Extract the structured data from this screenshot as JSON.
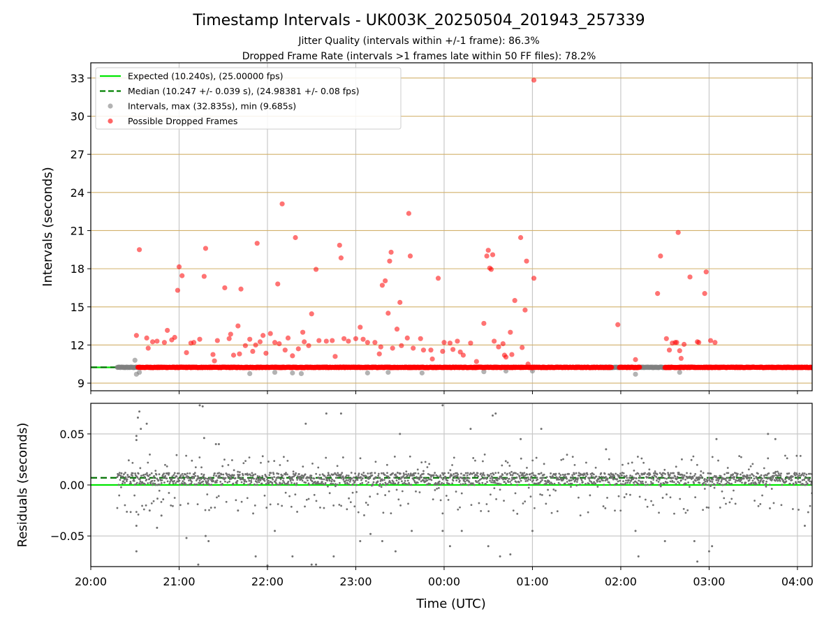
{
  "chart_data": [
    {
      "panel": "intervals",
      "type": "scatter",
      "title": "Timestamp Intervals - UK003K_20250504_201943_257339",
      "subtitles": [
        "Jitter Quality (intervals within +/-1 frame): 86.3%",
        "Dropped Frame Rate (intervals >1 frames late within 50 FF files): 78.2%"
      ],
      "xlabel": "",
      "ylabel": "Intervals (seconds)",
      "xlim": [
        "20:00",
        "04:10"
      ],
      "ylim": [
        8.4,
        34.2
      ],
      "yticks": [
        9,
        12,
        15,
        18,
        21,
        24,
        27,
        30,
        33
      ],
      "grid": true,
      "legend_position": "top-left",
      "legend": [
        {
          "label": "Expected (10.240s), (25.00000 fps)",
          "style": "solid-line",
          "color": "#00e600"
        },
        {
          "label": "Median (10.247 +/- 0.039 s), (24.98381 +/- 0.08 fps)",
          "style": "dashed-line",
          "color": "#008000"
        },
        {
          "label": "Intervals, max (32.835s), min (9.685s)",
          "style": "marker",
          "color": "#808080"
        },
        {
          "label": "Possible Dropped Frames",
          "style": "marker",
          "color": "#ff0000"
        }
      ],
      "expected": 10.24,
      "median": 10.247,
      "series": [
        {
          "name": "Possible Dropped Frames",
          "color": "#ff0000",
          "points": [
            [
              "20:31",
              12.75
            ],
            [
              "20:33",
              19.5
            ],
            [
              "20:38",
              12.55
            ],
            [
              "20:39",
              11.75
            ],
            [
              "20:42",
              12.25
            ],
            [
              "20:45",
              12.3
            ],
            [
              "20:50",
              12.2
            ],
            [
              "20:52",
              13.15
            ],
            [
              "20:55",
              12.4
            ],
            [
              "20:57",
              12.6
            ],
            [
              "20:59",
              16.3
            ],
            [
              "21:00",
              18.15
            ],
            [
              "21:02",
              17.45
            ],
            [
              "21:05",
              11.4
            ],
            [
              "21:08",
              12.15
            ],
            [
              "21:10",
              12.2
            ],
            [
              "21:14",
              12.45
            ],
            [
              "21:17",
              17.4
            ],
            [
              "21:18",
              19.6
            ],
            [
              "21:23",
              11.25
            ],
            [
              "21:24",
              10.75
            ],
            [
              "21:26",
              12.35
            ],
            [
              "21:31",
              16.5
            ],
            [
              "21:34",
              12.5
            ],
            [
              "21:35",
              12.85
            ],
            [
              "21:37",
              11.2
            ],
            [
              "21:40",
              13.5
            ],
            [
              "21:41",
              11.3
            ],
            [
              "21:42",
              16.4
            ],
            [
              "21:45",
              11.95
            ],
            [
              "21:48",
              12.45
            ],
            [
              "21:50",
              11.5
            ],
            [
              "21:52",
              12.0
            ],
            [
              "21:53",
              20.0
            ],
            [
              "21:55",
              12.25
            ],
            [
              "21:57",
              12.75
            ],
            [
              "21:59",
              11.35
            ],
            [
              "22:02",
              12.9
            ],
            [
              "22:05",
              12.2
            ],
            [
              "22:07",
              16.8
            ],
            [
              "22:08",
              12.1
            ],
            [
              "22:10",
              23.1
            ],
            [
              "22:12",
              11.6
            ],
            [
              "22:14",
              12.55
            ],
            [
              "22:17",
              11.15
            ],
            [
              "22:19",
              20.45
            ],
            [
              "22:21",
              11.7
            ],
            [
              "22:24",
              13.0
            ],
            [
              "22:25",
              12.25
            ],
            [
              "22:28",
              11.95
            ],
            [
              "22:30",
              14.45
            ],
            [
              "22:33",
              17.95
            ],
            [
              "22:35",
              12.35
            ],
            [
              "22:40",
              12.3
            ],
            [
              "22:44",
              12.35
            ],
            [
              "22:46",
              11.1
            ],
            [
              "22:49",
              19.85
            ],
            [
              "22:50",
              18.85
            ],
            [
              "22:52",
              12.5
            ],
            [
              "22:55",
              12.3
            ],
            [
              "23:00",
              12.5
            ],
            [
              "23:03",
              13.4
            ],
            [
              "23:05",
              12.45
            ],
            [
              "23:08",
              12.2
            ],
            [
              "23:13",
              12.2
            ],
            [
              "23:16",
              11.3
            ],
            [
              "23:17",
              11.85
            ],
            [
              "23:18",
              16.7
            ],
            [
              "23:20",
              17.05
            ],
            [
              "23:22",
              14.5
            ],
            [
              "23:23",
              18.6
            ],
            [
              "23:24",
              19.3
            ],
            [
              "23:25",
              11.75
            ],
            [
              "23:28",
              13.25
            ],
            [
              "23:30",
              15.35
            ],
            [
              "23:31",
              11.95
            ],
            [
              "23:35",
              12.55
            ],
            [
              "23:36",
              22.35
            ],
            [
              "23:37",
              19.0
            ],
            [
              "23:39",
              11.75
            ],
            [
              "23:44",
              12.5
            ],
            [
              "23:46",
              11.6
            ],
            [
              "23:51",
              11.6
            ],
            [
              "23:52",
              10.9
            ],
            [
              "23:56",
              17.25
            ],
            [
              "23:59",
              11.5
            ],
            [
              "00:00",
              12.2
            ],
            [
              "00:04",
              12.15
            ],
            [
              "00:06",
              11.65
            ],
            [
              "00:09",
              12.3
            ],
            [
              "00:11",
              11.45
            ],
            [
              "00:13",
              11.2
            ],
            [
              "00:18",
              12.15
            ],
            [
              "00:22",
              10.7
            ],
            [
              "00:27",
              13.7
            ],
            [
              "00:29",
              19.0
            ],
            [
              "00:30",
              19.45
            ],
            [
              "00:31",
              18.05
            ],
            [
              "00:32",
              17.95
            ],
            [
              "00:33",
              19.1
            ],
            [
              "00:34",
              12.3
            ],
            [
              "00:37",
              11.85
            ],
            [
              "00:40",
              12.1
            ],
            [
              "00:41",
              11.2
            ],
            [
              "00:42",
              11.05
            ],
            [
              "00:45",
              13.0
            ],
            [
              "00:46",
              11.25
            ],
            [
              "00:48",
              15.5
            ],
            [
              "00:52",
              20.45
            ],
            [
              "00:53",
              11.8
            ],
            [
              "00:55",
              14.75
            ],
            [
              "00:56",
              18.6
            ],
            [
              "00:57",
              10.5
            ],
            [
              "01:01",
              17.25
            ],
            [
              "01:58",
              13.6
            ],
            [
              "02:10",
              10.85
            ],
            [
              "02:25",
              16.05
            ],
            [
              "02:27",
              19.0
            ],
            [
              "02:31",
              12.5
            ],
            [
              "02:33",
              11.6
            ],
            [
              "02:35",
              12.15
            ],
            [
              "02:37",
              12.2
            ],
            [
              "02:38",
              12.2
            ],
            [
              "02:39",
              20.85
            ],
            [
              "02:40",
              11.55
            ],
            [
              "02:41",
              10.95
            ],
            [
              "02:43",
              12.05
            ],
            [
              "02:47",
              17.35
            ],
            [
              "02:52",
              12.25
            ],
            [
              "02:53",
              12.2
            ],
            [
              "02:57",
              16.05
            ],
            [
              "02:58",
              17.75
            ],
            [
              "03:01",
              12.35
            ],
            [
              "03:04",
              12.2
            ],
            [
              "01:01",
              32.835
            ]
          ],
          "baseline_runs": [
            [
              "20:32",
              "21:46"
            ],
            [
              "21:46",
              "01:54"
            ],
            [
              "01:59",
              "02:13"
            ],
            [
              "02:30",
              "04:10"
            ]
          ],
          "baseline_value": 10.24
        },
        {
          "name": "Intervals",
          "color": "#808080",
          "points": [
            [
              "20:30",
              10.8
            ],
            [
              "20:31",
              9.7
            ],
            [
              "20:33",
              9.85
            ],
            [
              "21:48",
              9.75
            ],
            [
              "22:05",
              9.85
            ],
            [
              "22:17",
              9.8
            ],
            [
              "22:23",
              9.75
            ],
            [
              "23:08",
              9.8
            ],
            [
              "23:22",
              9.85
            ],
            [
              "23:45",
              9.8
            ],
            [
              "00:27",
              9.9
            ],
            [
              "00:42",
              9.95
            ],
            [
              "01:00",
              9.95
            ],
            [
              "02:10",
              9.7
            ],
            [
              "02:40",
              9.85
            ]
          ],
          "baseline_runs": [
            [
              "20:18",
              "20:32"
            ],
            [
              "01:46",
              "01:59"
            ],
            [
              "02:13",
              "02:30"
            ]
          ],
          "baseline_value": 10.24
        }
      ]
    },
    {
      "panel": "residuals",
      "type": "scatter",
      "xlabel": "Time (UTC)",
      "ylabel": "Residuals (seconds)",
      "xlim": [
        "20:00",
        "04:10"
      ],
      "ylim": [
        -0.08,
        0.08
      ],
      "yticks": [
        -0.05,
        0.0,
        0.05
      ],
      "ytick_labels": [
        "−0.05",
        "0.00",
        "0.05"
      ],
      "xticks": [
        "20:00",
        "21:00",
        "22:00",
        "23:00",
        "00:00",
        "01:00",
        "02:00",
        "03:00",
        "04:00"
      ],
      "grid": true,
      "expected": 0.0,
      "median": 0.007,
      "series": [
        {
          "name": "Residuals",
          "color": "#707070",
          "x_range": [
            "20:18",
            "04:10"
          ],
          "dense_band": [
            0.0,
            0.012
          ],
          "outliers": [
            [
              "20:31",
              0.048
            ],
            [
              "20:31",
              0.044
            ],
            [
              "20:32",
              0.066
            ],
            [
              "20:33",
              0.072
            ],
            [
              "20:34",
              0.055
            ],
            [
              "20:38",
              0.06
            ],
            [
              "20:31",
              -0.04
            ],
            [
              "20:31",
              -0.065
            ],
            [
              "20:40",
              -0.025
            ],
            [
              "20:45",
              -0.042
            ],
            [
              "20:48",
              -0.03
            ],
            [
              "21:05",
              -0.052
            ],
            [
              "21:13",
              -0.078
            ],
            [
              "21:14",
              0.078
            ],
            [
              "21:16",
              0.077
            ],
            [
              "21:17",
              0.046
            ],
            [
              "21:18",
              -0.05
            ],
            [
              "21:20",
              -0.055
            ],
            [
              "21:25",
              0.04
            ],
            [
              "21:27",
              0.04
            ],
            [
              "21:40",
              -0.025
            ],
            [
              "21:52",
              -0.07
            ],
            [
              "22:00",
              -0.079
            ],
            [
              "22:05",
              -0.045
            ],
            [
              "22:17",
              -0.07
            ],
            [
              "22:26",
              0.06
            ],
            [
              "22:30",
              -0.078
            ],
            [
              "22:33",
              -0.078
            ],
            [
              "22:40",
              0.07
            ],
            [
              "22:45",
              -0.07
            ],
            [
              "22:50",
              0.07
            ],
            [
              "23:03",
              -0.055
            ],
            [
              "23:10",
              -0.048
            ],
            [
              "23:18",
              -0.055
            ],
            [
              "23:27",
              -0.065
            ],
            [
              "23:30",
              0.05
            ],
            [
              "23:38",
              -0.045
            ],
            [
              "23:59",
              0.078
            ],
            [
              "23:59",
              -0.045
            ],
            [
              "00:04",
              -0.06
            ],
            [
              "00:12",
              -0.045
            ],
            [
              "00:18",
              0.055
            ],
            [
              "00:30",
              -0.06
            ],
            [
              "00:33",
              0.068
            ],
            [
              "00:35",
              0.07
            ],
            [
              "00:38",
              -0.07
            ],
            [
              "00:45",
              -0.068
            ],
            [
              "00:52",
              0.045
            ],
            [
              "01:00",
              -0.045
            ],
            [
              "01:06",
              0.055
            ],
            [
              "01:50",
              0.035
            ],
            [
              "02:10",
              -0.045
            ],
            [
              "02:12",
              -0.07
            ],
            [
              "02:30",
              -0.055
            ],
            [
              "02:50",
              -0.055
            ],
            [
              "02:52",
              -0.075
            ],
            [
              "03:00",
              -0.065
            ],
            [
              "03:02",
              -0.06
            ],
            [
              "03:05",
              0.045
            ],
            [
              "03:40",
              0.05
            ],
            [
              "03:45",
              0.045
            ],
            [
              "04:05",
              -0.04
            ]
          ]
        }
      ]
    }
  ]
}
